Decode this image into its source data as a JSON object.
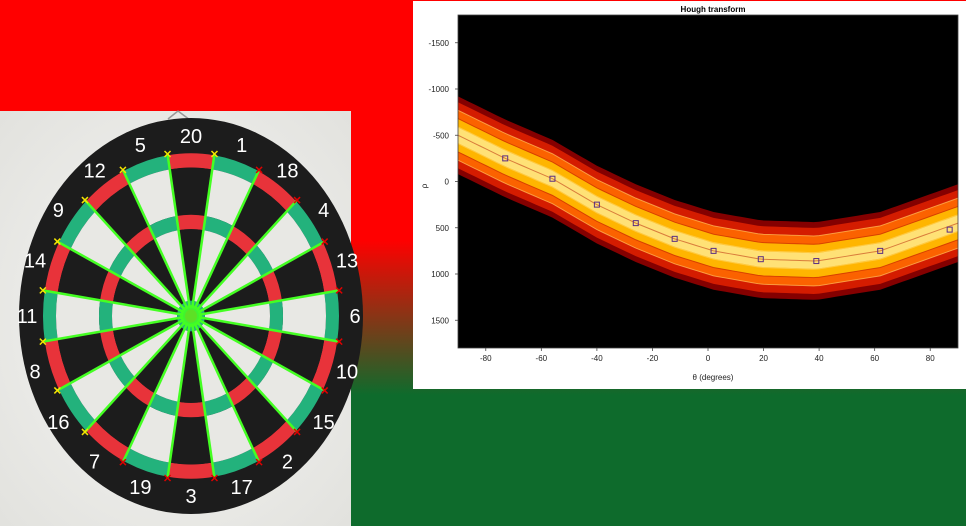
{
  "colors": {
    "top_background": "#ff0000",
    "bottom_background": "#0e6b2c",
    "board_black": "#1c1c1c",
    "board_white": "#e8e8e4",
    "board_red": "#e8333a",
    "board_green": "#23b27c",
    "detected_lines": "#44ff22",
    "marker_yellow": "#f5e600",
    "marker_red": "#e00000",
    "plot_background": "#000000"
  },
  "dartboard": {
    "icon": "dartboard-photo-icon",
    "sector_numbers": [
      "20",
      "1",
      "18",
      "4",
      "13",
      "6",
      "10",
      "15",
      "2",
      "17",
      "3",
      "19",
      "7",
      "16",
      "8",
      "11",
      "14",
      "9",
      "12",
      "5"
    ]
  },
  "chart_data": {
    "type": "heatmap",
    "title": "Hough transform",
    "xlabel": "θ (degrees)",
    "ylabel": "ρ",
    "xlim": [
      -90,
      90
    ],
    "ylim": [
      -1800,
      1800
    ],
    "y_reversed": true,
    "x_ticks": [
      -80,
      -60,
      -40,
      -20,
      0,
      20,
      40,
      60,
      80
    ],
    "y_ticks": [
      -1500,
      -1000,
      -500,
      0,
      500,
      1000,
      1500
    ],
    "colormap": "hot",
    "band_center": [
      {
        "theta": -90,
        "rho": -500
      },
      {
        "theta": -73,
        "rho": -250
      },
      {
        "theta": -56,
        "rho": -30
      },
      {
        "theta": -40,
        "rho": 250
      },
      {
        "theta": -26,
        "rho": 450
      },
      {
        "theta": -12,
        "rho": 620
      },
      {
        "theta": 2,
        "rho": 750
      },
      {
        "theta": 19,
        "rho": 840
      },
      {
        "theta": 39,
        "rho": 860
      },
      {
        "theta": 62,
        "rho": 750
      },
      {
        "theta": 90,
        "rho": 450
      }
    ],
    "band_half_width_rho": 420,
    "peaks": [
      {
        "theta": -73,
        "rho": -250
      },
      {
        "theta": -56,
        "rho": -30
      },
      {
        "theta": -40,
        "rho": 250
      },
      {
        "theta": -26,
        "rho": 450
      },
      {
        "theta": -12,
        "rho": 620
      },
      {
        "theta": 2,
        "rho": 750
      },
      {
        "theta": 19,
        "rho": 840
      },
      {
        "theta": 39,
        "rho": 860
      },
      {
        "theta": 62,
        "rho": 750
      },
      {
        "theta": 87,
        "rho": 520
      }
    ]
  }
}
